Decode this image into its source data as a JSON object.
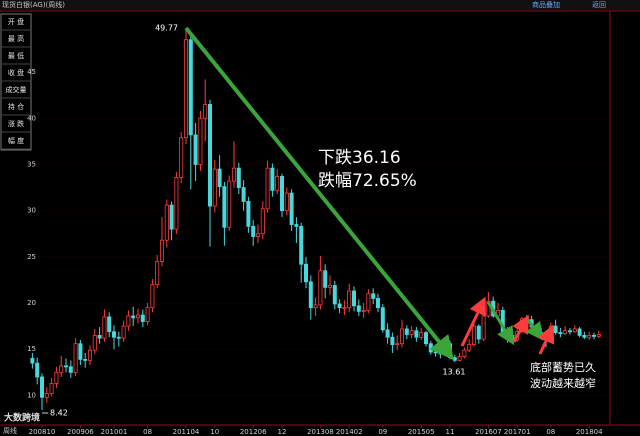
{
  "header": {
    "title": "现货白银(AG)(周线)",
    "links": [
      "商品叠加",
      "返回"
    ]
  },
  "side_panel": {
    "rows": [
      "开 盘",
      "最 高",
      "最 低",
      "收 盘",
      "成交量",
      "持 仓",
      "涨 跌",
      "幅 度"
    ]
  },
  "logo": "大数跨境",
  "footer": "周线",
  "chart_data": {
    "type": "candlestick",
    "up_color": "#ff3b3b",
    "down_color": "#48d8dc",
    "ylim": [
      6.8,
      51.5
    ],
    "yticks": [
      10,
      15,
      20,
      25,
      30,
      35,
      40,
      45
    ],
    "grid": true,
    "peak_label": "49.77",
    "low_label": "13.61",
    "start_low_label": "8.42",
    "drop_text": [
      "下跌36.16",
      "跌幅72.65%"
    ],
    "bottom_text": [
      "底部蓄势已久",
      "波动越来越窄"
    ],
    "categories": [
      null,
      null,
      "200810",
      null,
      null,
      null,
      null,
      null,
      null,
      null,
      "200906",
      null,
      null,
      null,
      null,
      null,
      null,
      "201001",
      null,
      null,
      null,
      null,
      null,
      null,
      "08",
      null,
      null,
      null,
      null,
      null,
      null,
      null,
      "201104",
      null,
      null,
      null,
      null,
      null,
      "10",
      null,
      null,
      null,
      null,
      null,
      null,
      null,
      "201206",
      null,
      null,
      null,
      null,
      null,
      "12",
      null,
      null,
      null,
      null,
      null,
      null,
      null,
      "201308",
      null,
      null,
      null,
      null,
      null,
      "201402",
      null,
      null,
      null,
      null,
      null,
      null,
      "09",
      null,
      null,
      null,
      null,
      null,
      null,
      null,
      "201505",
      null,
      null,
      null,
      null,
      null,
      "11",
      null,
      null,
      null,
      null,
      null,
      null,
      null,
      "201607",
      null,
      null,
      null,
      null,
      null,
      "201701",
      null,
      null,
      null,
      null,
      null,
      null,
      "08",
      null,
      null,
      null,
      null,
      null,
      null,
      null,
      "201804",
      null,
      null
    ],
    "open": [
      14.0,
      13.5,
      12.0,
      9.8,
      10.2,
      11.3,
      12.5,
      13.2,
      13.1,
      12.5,
      15.6,
      13.9,
      13.8,
      14.9,
      16.5,
      16.2,
      18.5,
      16.9,
      16.3,
      16.2,
      17.5,
      18.6,
      18.4,
      18.7,
      18.0,
      19.5,
      22.0,
      24.5,
      26.8,
      30.6,
      28.0,
      33.6,
      37.9,
      48.5,
      38.2,
      35.0,
      40.0,
      41.5,
      30.5,
      34.5,
      32.6,
      28.2,
      33.2,
      34.6,
      32.5,
      31.0,
      28.3,
      27.2,
      27.5,
      30.2,
      34.6,
      32.2,
      33.7,
      30.0,
      31.9,
      28.5,
      28.3,
      24.2,
      22.3,
      19.5,
      19.8,
      23.5,
      21.7,
      21.9,
      19.9,
      19.5,
      19.5,
      21.3,
      19.7,
      19.1,
      19.2,
      21.0,
      20.5,
      19.5,
      17.1,
      16.3,
      15.5,
      15.6,
      17.2,
      16.6,
      17.0,
      16.3,
      16.8,
      15.6,
      14.7,
      14.6,
      14.5,
      15.6,
      14.1,
      13.8,
      14.2,
      14.9,
      15.5,
      17.5,
      16.1,
      18.6,
      20.2,
      18.6,
      19.2,
      16.8,
      16.5,
      16.0,
      16.9,
      18.3,
      18.2,
      17.4,
      16.8,
      16.6,
      16.4,
      17.5,
      16.8,
      16.7,
      17.0,
      16.9,
      17.2,
      16.5,
      16.3,
      16.5,
      16.4
    ],
    "high": [
      14.6,
      14.1,
      12.4,
      10.9,
      11.9,
      13.1,
      14.3,
      14.0,
      13.8,
      16.2,
      16.0,
      14.6,
      15.4,
      17.2,
      17.4,
      19.3,
      19.0,
      17.6,
      16.9,
      18.1,
      19.2,
      19.6,
      19.4,
      19.3,
      20.0,
      22.6,
      25.2,
      29.3,
      31.2,
      31.0,
      34.2,
      38.5,
      49.77,
      48.8,
      39.5,
      40.8,
      44.2,
      42.0,
      35.5,
      36.0,
      33.1,
      33.8,
      37.5,
      35.2,
      33.3,
      31.5,
      29.0,
      28.5,
      31.0,
      35.4,
      35.1,
      34.5,
      34.0,
      32.5,
      32.3,
      29.3,
      28.7,
      25.0,
      23.0,
      20.6,
      25.1,
      24.2,
      23.0,
      22.4,
      20.4,
      20.3,
      22.1,
      21.8,
      20.4,
      20.0,
      21.5,
      21.6,
      21.0,
      19.9,
      17.8,
      16.8,
      16.5,
      18.2,
      17.6,
      17.5,
      17.4,
      17.3,
      17.0,
      15.9,
      15.2,
      15.0,
      16.0,
      15.9,
      14.4,
      14.6,
      15.2,
      16.1,
      18.0,
      17.7,
      18.9,
      21.2,
      20.7,
      20.0,
      19.6,
      17.4,
      17.0,
      17.5,
      18.5,
      18.7,
      18.6,
      17.7,
      17.3,
      17.0,
      17.9,
      18.2,
      17.3,
      17.5,
      17.3,
      17.6,
      17.4,
      16.9,
      16.9,
      16.8,
      17.0
    ],
    "low": [
      12.9,
      11.2,
      8.42,
      9.2,
      9.9,
      10.8,
      12.0,
      12.5,
      11.9,
      12.1,
      13.3,
      13.0,
      13.3,
      14.5,
      15.6,
      15.8,
      16.3,
      15.0,
      15.3,
      15.8,
      17.0,
      17.5,
      17.8,
      17.4,
      17.6,
      19.0,
      21.6,
      24.0,
      26.0,
      26.8,
      27.5,
      33.0,
      37.2,
      32.3,
      33.2,
      34.3,
      37.5,
      26.1,
      29.8,
      31.5,
      26.2,
      27.8,
      32.5,
      31.8,
      30.0,
      27.6,
      26.2,
      26.5,
      26.9,
      29.8,
      31.5,
      31.8,
      29.3,
      29.5,
      27.8,
      26.5,
      22.2,
      21.6,
      18.2,
      18.6,
      19.3,
      20.5,
      20.9,
      19.3,
      18.9,
      18.7,
      19.0,
      19.1,
      18.6,
      18.4,
      18.9,
      19.9,
      19.0,
      16.8,
      15.6,
      14.6,
      14.9,
      15.2,
      16.1,
      16.2,
      15.8,
      16.0,
      15.3,
      14.4,
      14.2,
      14.0,
      14.3,
      13.9,
      13.61,
      13.7,
      14.0,
      14.7,
      15.3,
      15.6,
      15.9,
      18.4,
      18.4,
      18.3,
      16.6,
      15.7,
      15.6,
      15.8,
      16.7,
      17.7,
      16.8,
      16.5,
      16.3,
      15.2,
      16.2,
      16.6,
      16.3,
      16.5,
      16.6,
      16.8,
      16.3,
      16.1,
      16.0,
      16.1,
      16.2
    ],
    "close": [
      13.5,
      12.0,
      9.8,
      10.2,
      11.3,
      12.5,
      13.2,
      13.1,
      12.5,
      15.6,
      13.9,
      13.8,
      14.9,
      16.5,
      16.2,
      18.5,
      16.9,
      16.3,
      16.2,
      17.5,
      18.6,
      18.4,
      18.7,
      18.0,
      19.5,
      22.0,
      24.5,
      26.8,
      30.6,
      28.0,
      33.6,
      37.9,
      48.5,
      38.2,
      35.0,
      40.0,
      41.5,
      30.5,
      34.5,
      32.6,
      28.2,
      33.2,
      34.6,
      32.5,
      31.0,
      28.3,
      27.2,
      27.5,
      30.2,
      34.6,
      32.2,
      33.7,
      30.0,
      31.9,
      28.5,
      28.3,
      24.2,
      22.3,
      19.5,
      19.8,
      23.5,
      21.7,
      21.9,
      19.9,
      19.5,
      19.5,
      21.3,
      19.7,
      19.1,
      19.2,
      21.0,
      20.5,
      19.5,
      17.1,
      16.3,
      15.5,
      15.6,
      17.2,
      16.6,
      17.0,
      16.3,
      16.8,
      15.6,
      14.7,
      14.6,
      14.5,
      15.6,
      14.1,
      13.8,
      14.2,
      14.9,
      15.5,
      17.5,
      16.1,
      18.6,
      20.2,
      18.6,
      19.2,
      16.8,
      16.5,
      16.0,
      16.9,
      18.3,
      18.2,
      17.4,
      16.8,
      16.6,
      16.4,
      17.5,
      16.8,
      16.7,
      17.0,
      16.9,
      17.2,
      16.5,
      16.3,
      16.5,
      16.4,
      16.6
    ]
  }
}
